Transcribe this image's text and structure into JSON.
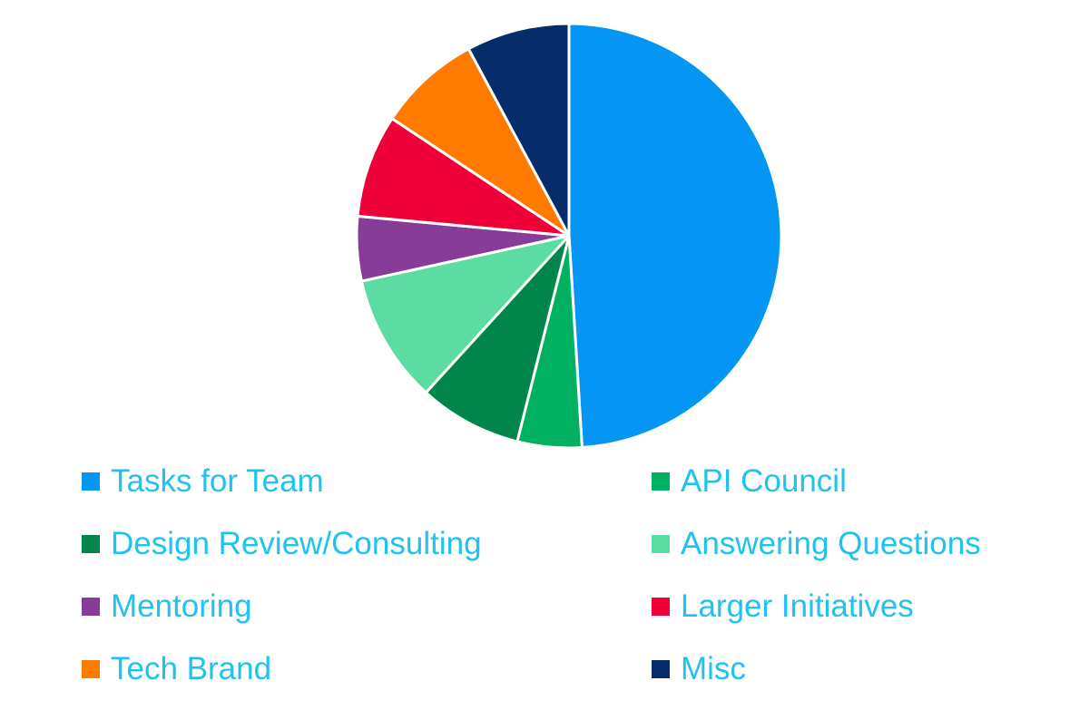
{
  "chart_data": {
    "type": "pie",
    "title": "",
    "series": [
      {
        "name": "",
        "slices": [
          {
            "label": "Tasks for Team",
            "value": 50,
            "color": "#0496F2"
          },
          {
            "label": "API Council",
            "value": 5,
            "color": "#00B162"
          },
          {
            "label": "Design Review/Consulting",
            "value": 8,
            "color": "#00854A"
          },
          {
            "label": "Answering Questions",
            "value": 10,
            "color": "#5CDCA2"
          },
          {
            "label": "Mentoring",
            "value": 5,
            "color": "#873D98"
          },
          {
            "label": "Larger Initiatives",
            "value": 8,
            "color": "#EF0039"
          },
          {
            "label": "Tech Brand",
            "value": 8,
            "color": "#FF7B00"
          },
          {
            "label": "Misc",
            "value": 8,
            "color": "#062C6A"
          }
        ]
      }
    ],
    "legend_position": "bottom",
    "legend_text_color": "#1FC3EE"
  }
}
